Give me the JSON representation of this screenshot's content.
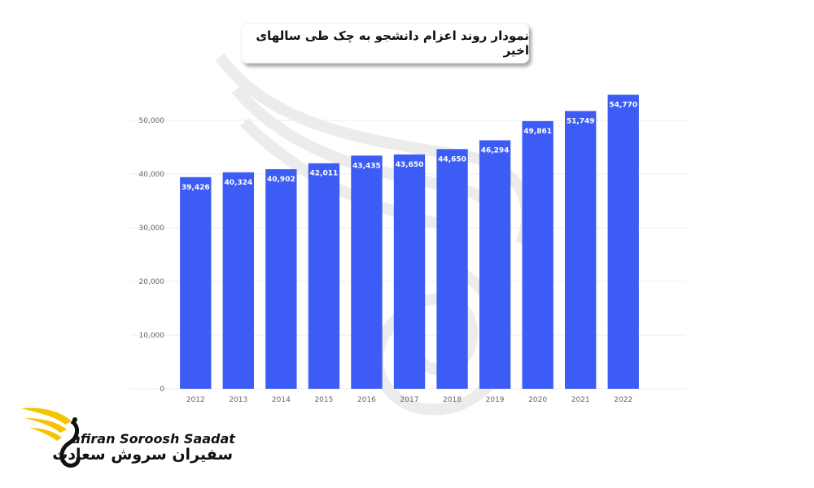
{
  "header": {
    "title": "نمودار روند اعزام دانشجو به چک طی سالهای اخیر"
  },
  "logo": {
    "latin_text": "afiran Soroosh Saadat",
    "persian_text": "سفیران سروش سعادت"
  },
  "colors": {
    "bar": "#3d5cf5",
    "grid": "#ececec",
    "tick_text": "#666666",
    "label_text": "#ffffff"
  },
  "chart_data": {
    "type": "bar",
    "categories": [
      "2012",
      "2013",
      "2014",
      "2015",
      "2016",
      "2017",
      "2018",
      "2019",
      "2020",
      "2021",
      "2022"
    ],
    "values": [
      39426,
      40324,
      40902,
      42011,
      43435,
      43650,
      44650,
      46294,
      49861,
      51749,
      54770
    ],
    "value_labels": [
      "39,426",
      "40,324",
      "40,902",
      "42,011",
      "43,435",
      "43,650",
      "44,650",
      "46,294",
      "49,861",
      "51,749",
      "54,770"
    ],
    "yticks": [
      0,
      10000,
      20000,
      30000,
      40000,
      50000
    ],
    "ytick_labels": [
      "0",
      "10,000",
      "20,000",
      "30,000",
      "40,000",
      "50,000"
    ],
    "ylim": [
      0,
      55000
    ],
    "grid": true,
    "legend": false
  }
}
